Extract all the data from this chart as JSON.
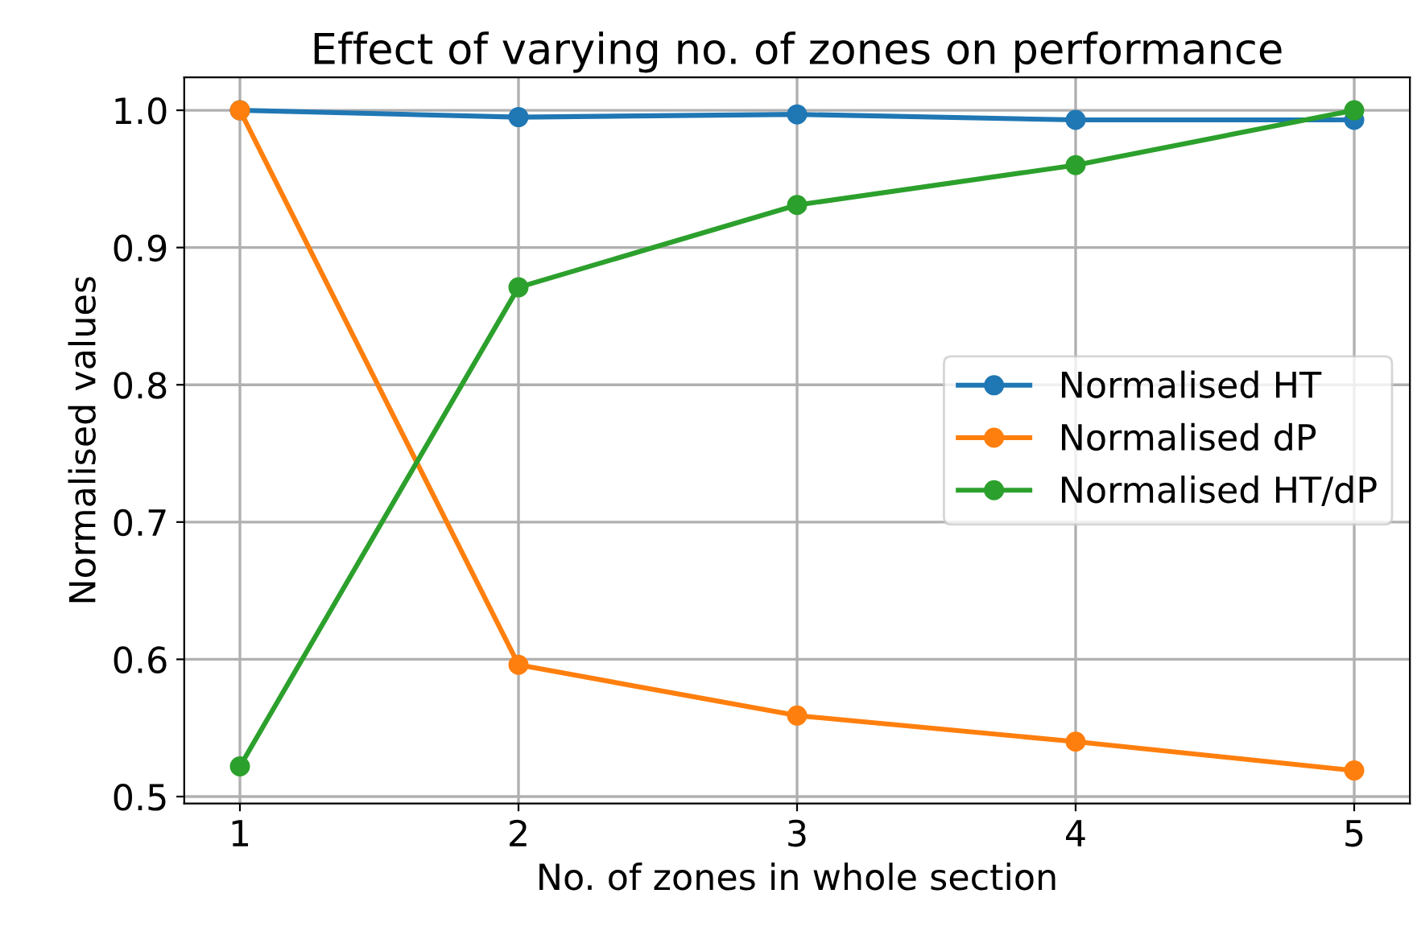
{
  "chart_data": {
    "type": "line",
    "title": "Effect of varying no. of zones on performance",
    "xlabel": "No. of zones in whole section",
    "ylabel": "Normalised values",
    "x": [
      1,
      2,
      3,
      4,
      5
    ],
    "series": [
      {
        "name": "Normalised HT",
        "color": "#1f77b4",
        "values": [
          1.0,
          0.995,
          0.997,
          0.993,
          0.993
        ]
      },
      {
        "name": "Normalised dP",
        "color": "#ff7f0e",
        "values": [
          1.0,
          0.596,
          0.559,
          0.54,
          0.519
        ]
      },
      {
        "name": "Normalised HT/dP",
        "color": "#2ca02c",
        "values": [
          0.522,
          0.871,
          0.931,
          0.96,
          1.0
        ]
      }
    ],
    "xlim": [
      0.8,
      5.2
    ],
    "xticks": [
      1,
      2,
      3,
      4,
      5
    ],
    "ylim": [
      0.495,
      1.024
    ],
    "yticks": [
      0.5,
      0.6,
      0.7,
      0.8,
      0.9,
      {
        "value": 1.0,
        "label": "1.0"
      }
    ],
    "grid": true,
    "legend": "right",
    "marker": "circle",
    "line_style": "solid"
  }
}
